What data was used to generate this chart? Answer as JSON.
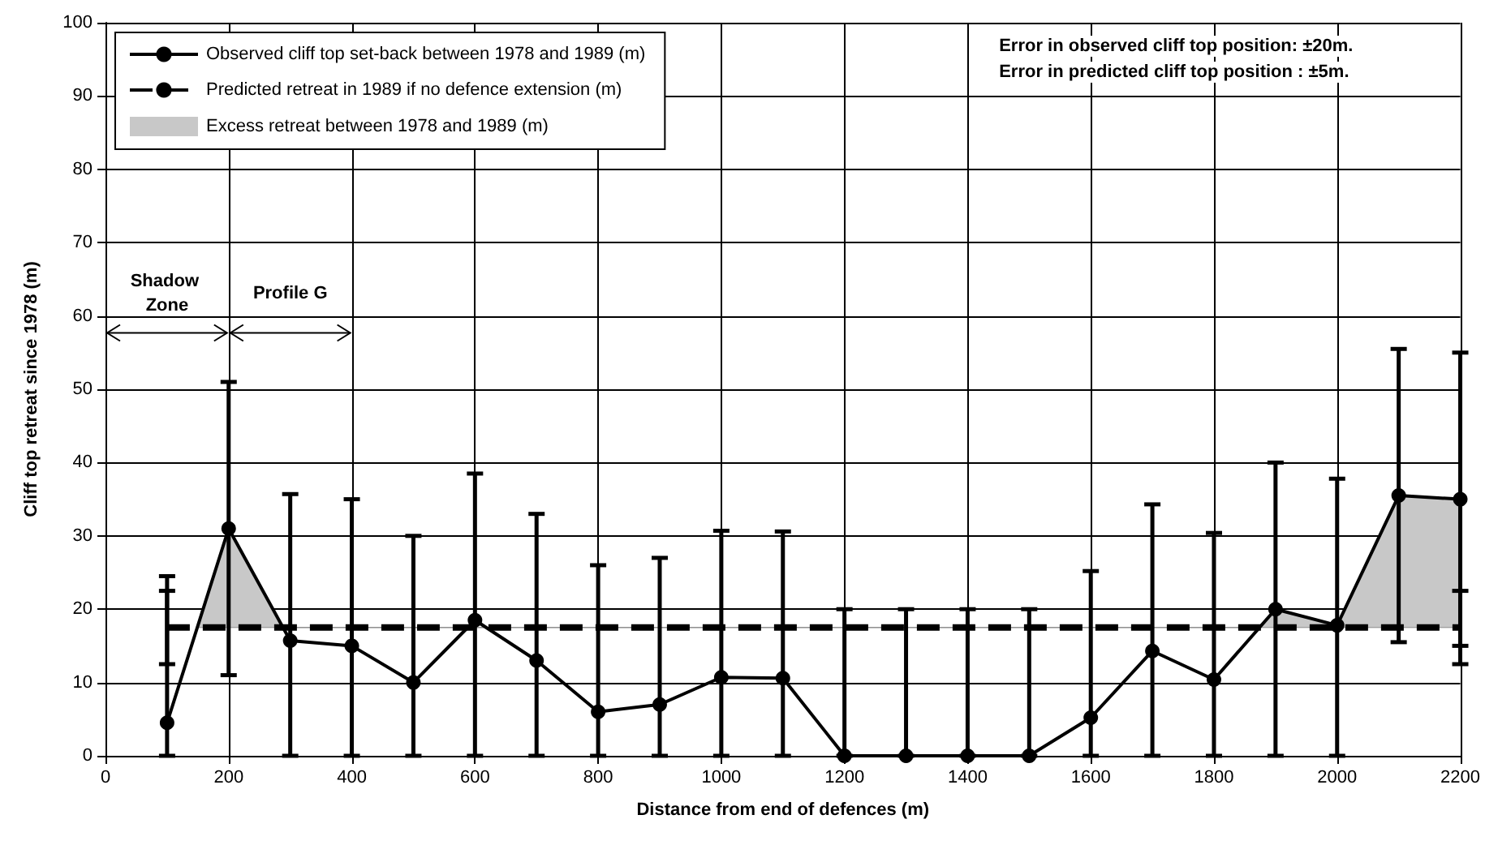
{
  "chart_data": {
    "type": "line",
    "xlabel": "Distance from end of defences (m)",
    "ylabel": "Cliff top retreat since 1978 (m)",
    "xlim": [
      0,
      2200
    ],
    "xticks": [
      0,
      200,
      400,
      600,
      800,
      1000,
      1200,
      1400,
      1600,
      1800,
      2000,
      2200
    ],
    "ylim": [
      0,
      100
    ],
    "yticks": [
      0,
      10,
      20,
      30,
      40,
      50,
      60,
      70,
      80,
      90,
      100
    ],
    "grid": true,
    "legend": "top left",
    "annotations": [
      "Shadow Zone",
      "Profile G",
      "Error in observed cliff top position: ±20m.",
      "Error in predicted cliff top position : ±5m."
    ],
    "series": [
      {
        "name": "Observed cliff top set-back between 1978 and 1989 (m)",
        "type": "line",
        "color": "#000000",
        "marker": "circle",
        "line_style": "solid",
        "x": [
          100,
          200,
          300,
          400,
          500,
          600,
          700,
          800,
          900,
          1000,
          1100,
          1200,
          1300,
          1400,
          1500,
          1600,
          1700,
          1800,
          1900,
          2000,
          2100,
          2200
        ],
        "values": [
          4.5,
          31,
          15.7,
          15,
          10,
          18.5,
          13,
          6,
          7,
          10.7,
          10.6,
          0,
          0,
          0,
          0,
          5.2,
          14.3,
          10.4,
          20,
          17.8,
          35.5,
          35
        ],
        "errors": [
          [
            0,
            24.5
          ],
          [
            11,
            51
          ],
          [
            0,
            35.7
          ],
          [
            0,
            35
          ],
          [
            0,
            30
          ],
          [
            0,
            38.5
          ],
          [
            0,
            33
          ],
          [
            0,
            26
          ],
          [
            0,
            27
          ],
          [
            0,
            30.7
          ],
          [
            0,
            30.6
          ],
          [
            0,
            20
          ],
          [
            0,
            20
          ],
          [
            0,
            20
          ],
          [
            0,
            20
          ],
          [
            0,
            25.2
          ],
          [
            0,
            34.3
          ],
          [
            0,
            30.4
          ],
          [
            0,
            40
          ],
          [
            0,
            37.8
          ],
          [
            15.5,
            55.5
          ],
          [
            15,
            55
          ]
        ]
      },
      {
        "name": "Predicted retreat in 1989 if no defence extension (m)",
        "type": "line",
        "color": "#000000",
        "marker": "none",
        "line_style": "dashed",
        "x": [
          100,
          2200
        ],
        "values": [
          17.5,
          17.5
        ],
        "errors": [
          5,
          5
        ]
      },
      {
        "name": "Excess retreat between 1978 and 1989 (m)",
        "type": "area",
        "color": "#c8c8c8",
        "x": [
          149,
          200,
          288,
          1874,
          1900,
          2000,
          2100,
          2200,
          2200
        ],
        "values": [
          17.5,
          31,
          17.5,
          17.5,
          20,
          17.8,
          35.5,
          35,
          17.5
        ]
      }
    ]
  }
}
